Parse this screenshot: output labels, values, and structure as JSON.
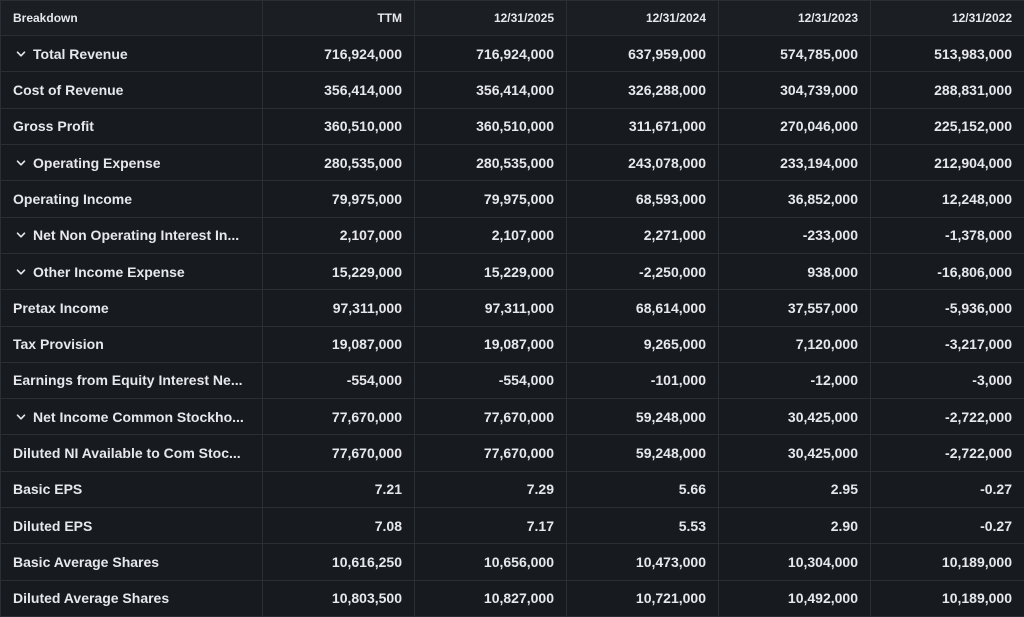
{
  "table": {
    "columns": [
      "Breakdown",
      "TTM",
      "12/31/2025",
      "12/31/2024",
      "12/31/2023",
      "12/31/2022"
    ],
    "rows": [
      {
        "label": "Total Revenue",
        "expandable": true,
        "icon": "chevron-down-icon",
        "values": [
          "716,924,000",
          "716,924,000",
          "637,959,000",
          "574,785,000",
          "513,983,000"
        ]
      },
      {
        "label": "Cost of Revenue",
        "expandable": false,
        "values": [
          "356,414,000",
          "356,414,000",
          "326,288,000",
          "304,739,000",
          "288,831,000"
        ]
      },
      {
        "label": "Gross Profit",
        "expandable": false,
        "values": [
          "360,510,000",
          "360,510,000",
          "311,671,000",
          "270,046,000",
          "225,152,000"
        ]
      },
      {
        "label": "Operating Expense",
        "expandable": true,
        "icon": "chevron-down-icon",
        "values": [
          "280,535,000",
          "280,535,000",
          "243,078,000",
          "233,194,000",
          "212,904,000"
        ]
      },
      {
        "label": "Operating Income",
        "expandable": false,
        "values": [
          "79,975,000",
          "79,975,000",
          "68,593,000",
          "36,852,000",
          "12,248,000"
        ]
      },
      {
        "label": "Net Non Operating Interest In...",
        "expandable": true,
        "icon": "chevron-down-icon",
        "values": [
          "2,107,000",
          "2,107,000",
          "2,271,000",
          "-233,000",
          "-1,378,000"
        ]
      },
      {
        "label": "Other Income Expense",
        "expandable": true,
        "icon": "chevron-down-icon",
        "values": [
          "15,229,000",
          "15,229,000",
          "-2,250,000",
          "938,000",
          "-16,806,000"
        ]
      },
      {
        "label": "Pretax Income",
        "expandable": false,
        "values": [
          "97,311,000",
          "97,311,000",
          "68,614,000",
          "37,557,000",
          "-5,936,000"
        ]
      },
      {
        "label": "Tax Provision",
        "expandable": false,
        "values": [
          "19,087,000",
          "19,087,000",
          "9,265,000",
          "7,120,000",
          "-3,217,000"
        ]
      },
      {
        "label": "Earnings from Equity Interest Ne...",
        "expandable": false,
        "values": [
          "-554,000",
          "-554,000",
          "-101,000",
          "-12,000",
          "-3,000"
        ]
      },
      {
        "label": "Net Income Common Stockho...",
        "expandable": true,
        "icon": "chevron-down-icon",
        "values": [
          "77,670,000",
          "77,670,000",
          "59,248,000",
          "30,425,000",
          "-2,722,000"
        ]
      },
      {
        "label": "Diluted NI Available to Com Stoc...",
        "expandable": false,
        "values": [
          "77,670,000",
          "77,670,000",
          "59,248,000",
          "30,425,000",
          "-2,722,000"
        ]
      },
      {
        "label": "Basic EPS",
        "expandable": false,
        "values": [
          "7.21",
          "7.29",
          "5.66",
          "2.95",
          "-0.27"
        ]
      },
      {
        "label": "Diluted EPS",
        "expandable": false,
        "values": [
          "7.08",
          "7.17",
          "5.53",
          "2.90",
          "-0.27"
        ]
      },
      {
        "label": "Basic Average Shares",
        "expandable": false,
        "values": [
          "10,616,250",
          "10,656,000",
          "10,473,000",
          "10,304,000",
          "10,189,000"
        ]
      },
      {
        "label": "Diluted Average Shares",
        "expandable": false,
        "values": [
          "10,803,500",
          "10,827,000",
          "10,721,000",
          "10,492,000",
          "10,189,000"
        ]
      }
    ]
  },
  "colors": {
    "background": "#171a1f",
    "border": "#2a2f36",
    "text": "#e6e8eb"
  }
}
